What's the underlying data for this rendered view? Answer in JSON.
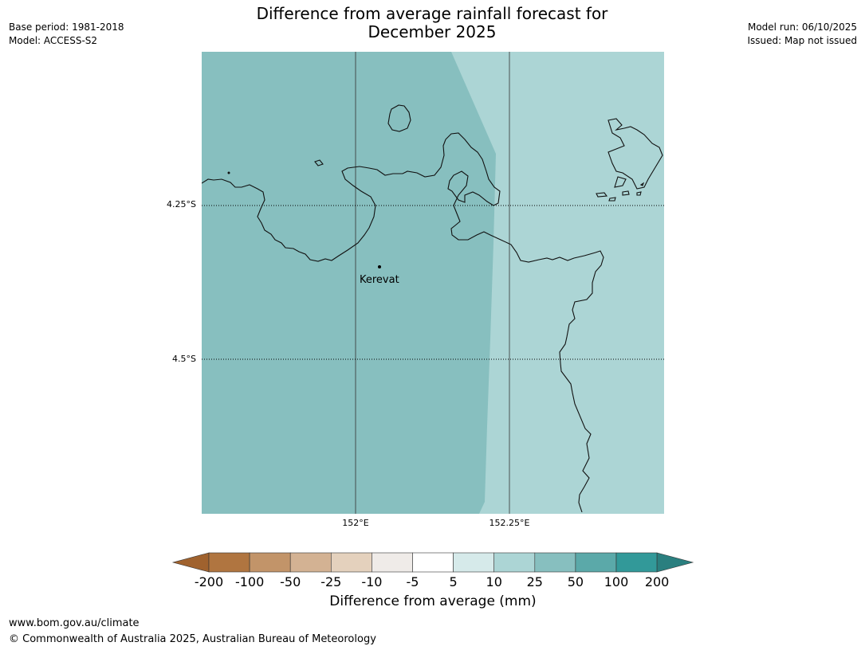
{
  "title_line1": "Difference from average rainfall forecast for",
  "title_line2": "December 2025",
  "meta_left": {
    "base_period": "Base period: 1981-2018",
    "model": "Model: ACCESS-S2"
  },
  "meta_right": {
    "model_run": "Model run: 06/10/2025",
    "issued": "Issued: Map not issued"
  },
  "map": {
    "lat_ticks": [
      "4.25°S",
      "4.5°S"
    ],
    "lon_ticks": [
      "152°E",
      "152.25°E"
    ],
    "place": {
      "name": "Kerevat"
    },
    "colors": {
      "band_25_50": "#87bfbf",
      "band_10_25": "#acd5d5",
      "coast": "#111111"
    }
  },
  "legend": {
    "labels": [
      "-200",
      "-100",
      "-50",
      "-25",
      "-10",
      "-5",
      "5",
      "10",
      "25",
      "50",
      "100",
      "200"
    ],
    "colors": [
      "#a0622e",
      "#b07540",
      "#c29469",
      "#d3b293",
      "#e4d1bd",
      "#efebe8",
      "#ffffff",
      "#d6eaea",
      "#acd5d5",
      "#87bfbf",
      "#5ba9a9",
      "#329999",
      "#2a7f7f"
    ],
    "title": "Difference from average (mm)"
  },
  "footer": {
    "url": "www.bom.gov.au/climate",
    "copyright": "© Commonwealth of Australia 2025, Australian Bureau of Meteorology"
  }
}
